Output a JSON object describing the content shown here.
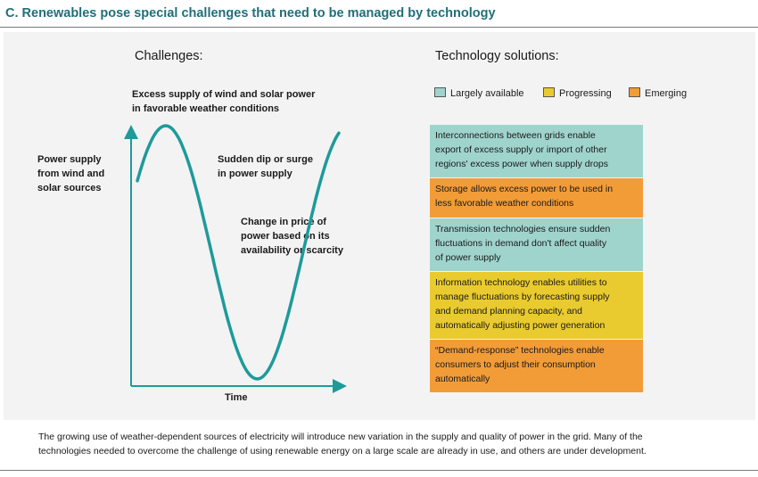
{
  "header": {
    "title": "C.  Renewables pose special challenges that need to be managed by technology"
  },
  "challenges": {
    "heading": "Challenges:",
    "peak_label": [
      "Excess supply of wind and solar power",
      "in favorable weather conditions"
    ],
    "y_label": [
      "Power supply",
      "from wind and",
      "solar sources"
    ],
    "dip_label": [
      "Sudden dip or surge",
      "in power supply"
    ],
    "price_label": [
      "Change in price of",
      "power based on its",
      "availability or scarcity"
    ],
    "x_label": "Time",
    "curve_color": "#1e9a9a"
  },
  "solutions": {
    "heading": "Technology solutions:",
    "legend": [
      {
        "label": "Largely available",
        "color": "#9fd4cd"
      },
      {
        "label": "Progressing",
        "color": "#eacb2f"
      },
      {
        "label": "Emerging",
        "color": "#f29c38"
      }
    ],
    "items": [
      {
        "lines": [
          "Interconnections between grids enable",
          "export of excess supply or import of other",
          "regions' excess power when supply drops"
        ],
        "color": "#9fd4cd"
      },
      {
        "lines": [
          "Storage allows excess power to be used in",
          "less favorable weather conditions"
        ],
        "color": "#f29c38"
      },
      {
        "lines": [
          "Transmission technologies ensure sudden",
          "fluctuations in demand don't affect quality",
          "of power supply"
        ],
        "color": "#9fd4cd"
      },
      {
        "lines": [
          "Information technology enables utilities to",
          "manage fluctuations by forecasting supply",
          "and demand planning capacity, and",
          "automatically adjusting power generation"
        ],
        "color": "#eacb2f"
      },
      {
        "lines": [
          "“Demand-response” technologies enable",
          "consumers to adjust their consumption",
          "automatically"
        ],
        "color": "#f29c38"
      }
    ]
  },
  "footer": {
    "lines": [
      "The growing use of weather-dependent sources of electricity will introduce new variation in the supply and quality of power in the grid. Many of the",
      "technologies needed to overcome the challenge of using renewable energy on a large scale are already in use, and others are under development."
    ]
  }
}
